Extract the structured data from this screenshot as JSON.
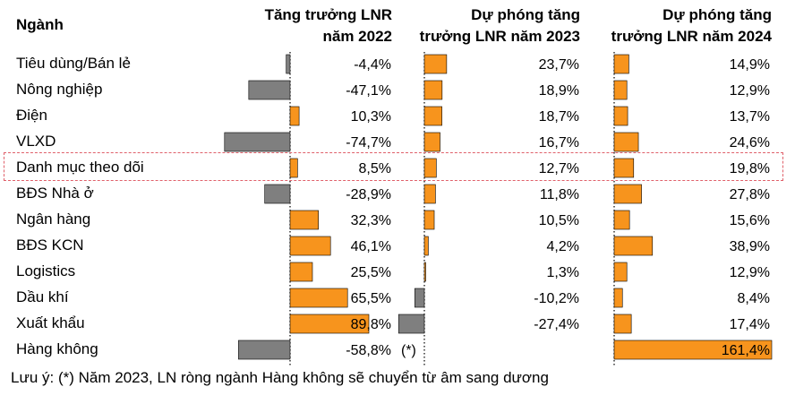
{
  "headers": {
    "category": "Ngành",
    "col1": [
      "Tăng trưởng LNR",
      "năm 2022"
    ],
    "col2": [
      "Dự phóng tăng",
      "trưởng LNR năm 2023"
    ],
    "col3": [
      "Dự phóng tăng",
      "trưởng LNR năm 2024"
    ]
  },
  "note": "Lưu ý: (*) Năm 2023, LN ròng ngành Hàng không sẽ chuyển từ âm sang dương",
  "aviation_marker": "(*)",
  "colors": {
    "positive": "#f7941d",
    "negative": "#7f7f7f",
    "outline": "#000000",
    "highlight": "#e0606a"
  },
  "highlighted_row": "Danh mục theo dõi",
  "chart_data": {
    "type": "bar",
    "orientation": "horizontal",
    "categories": [
      "Tiêu dùng/Bán lẻ",
      "Nông nghiệp",
      "Điện",
      "VLXD",
      "Danh mục theo dõi",
      "BĐS Nhà ở",
      "Ngân hàng",
      "BĐS KCN",
      "Logistics",
      "Dầu khí",
      "Xuất khẩu",
      "Hàng không"
    ],
    "series": [
      {
        "name": "Tăng trưởng LNR năm 2022",
        "values": [
          -4.4,
          -47.1,
          10.3,
          -74.7,
          8.5,
          -28.9,
          32.3,
          46.1,
          25.5,
          65.5,
          89.8,
          -58.8
        ],
        "labels": [
          "-4,4%",
          "-47,1%",
          "10,3%",
          "-74,7%",
          "8,5%",
          "-28,9%",
          "32,3%",
          "46,1%",
          "25,5%",
          "65,5%",
          "89,8%",
          "-58,8%"
        ]
      },
      {
        "name": "Dự phóng tăng trưởng LNR năm 2023",
        "values": [
          23.7,
          18.9,
          18.7,
          16.7,
          12.7,
          11.8,
          10.5,
          4.2,
          1.3,
          -10.2,
          -27.4,
          null
        ],
        "labels": [
          "23,7%",
          "18,9%",
          "18,7%",
          "16,7%",
          "12,7%",
          "11,8%",
          "10,5%",
          "4,2%",
          "1,3%",
          "-10,2%",
          "-27,4%",
          ""
        ]
      },
      {
        "name": "Dự phóng tăng trưởng LNR năm 2024",
        "values": [
          14.9,
          12.9,
          13.7,
          24.6,
          19.8,
          27.8,
          15.6,
          38.9,
          12.9,
          8.4,
          17.4,
          161.4
        ],
        "labels": [
          "14,9%",
          "12,9%",
          "13,7%",
          "24,6%",
          "19,8%",
          "27,8%",
          "15,6%",
          "38,9%",
          "12,9%",
          "8,4%",
          "17,4%",
          "161,4%"
        ]
      }
    ]
  }
}
